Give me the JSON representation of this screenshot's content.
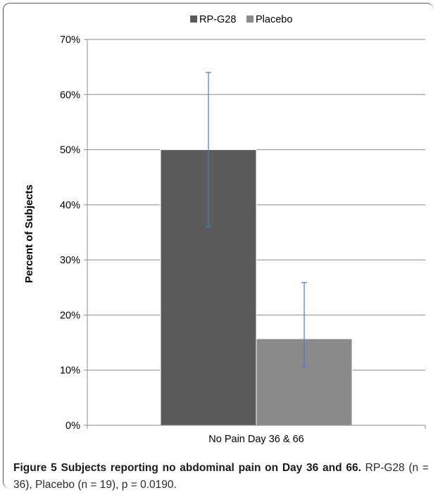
{
  "chart_data": {
    "type": "bar",
    "categories": [
      "No Pain Day 36 & 66"
    ],
    "series": [
      {
        "name": "RP-G28",
        "values": [
          50
        ],
        "error_low": [
          36
        ],
        "error_high": [
          64
        ],
        "color": "#5b5b5b"
      },
      {
        "name": "Placebo",
        "values": [
          15.7
        ],
        "error_low": [
          10.6
        ],
        "error_high": [
          25.9
        ],
        "color": "#8a8a8a"
      }
    ],
    "ylabel": "Percent of Subjects",
    "ylim": [
      0,
      70
    ],
    "yticks": [
      "0%",
      "10%",
      "20%",
      "30%",
      "40%",
      "50%",
      "60%",
      "70%"
    ],
    "ytick_values": [
      0,
      10,
      20,
      30,
      40,
      50,
      60,
      70
    ],
    "grid": true,
    "legend_position": "top-center",
    "error_bar_color": "#4a7bc8"
  },
  "caption": {
    "title": "Figure 5 Subjects reporting no abdominal pain on Day 36 and 66.",
    "body": " RP-G28 (n = 36), Placebo (n = 19), p = 0.0190."
  }
}
